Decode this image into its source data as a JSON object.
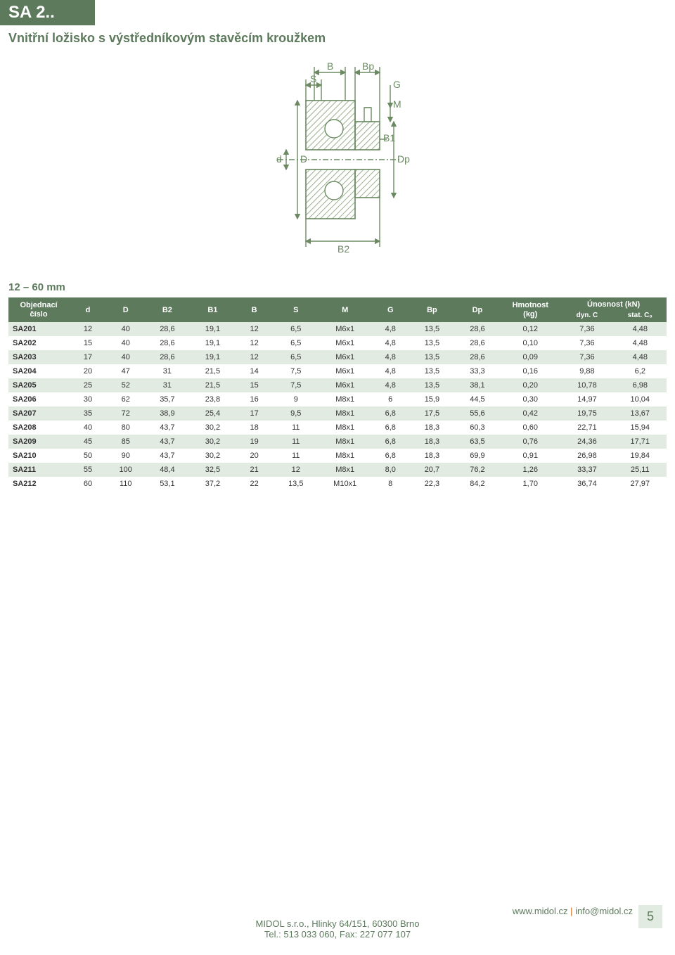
{
  "header": {
    "code": "SA 2.."
  },
  "subtitle": "Vnitřní ložisko s výstředníkovým stavěcím kroužkem",
  "diagram": {
    "labels": {
      "B": "B",
      "S": "S",
      "Bp": "Bp",
      "G": "G",
      "M": "M",
      "B1": "B1",
      "Dp": "Dp",
      "d": "d",
      "D": "D",
      "B2": "B2"
    },
    "stroke": "#6b8a62",
    "hatch": "#9bb08f"
  },
  "range": "12 – 60 mm",
  "table": {
    "header_bg": "#5d7a5d",
    "row_alt_bg": "#e2ebe2",
    "columns": [
      "Objednací číslo",
      "d",
      "D",
      "B2",
      "B1",
      "B",
      "S",
      "M",
      "G",
      "Bp",
      "Dp",
      "Hmotnost (kg)",
      "dyn. C",
      "stat. C₀"
    ],
    "group_load": "Únosnost (kN)",
    "col_hmot": "Hmotnost\n(kg)",
    "col_obj": "Objednací\nčíslo",
    "rows": [
      [
        "SA201",
        "12",
        "40",
        "28,6",
        "19,1",
        "12",
        "6,5",
        "M6x1",
        "4,8",
        "13,5",
        "28,6",
        "0,12",
        "7,36",
        "4,48"
      ],
      [
        "SA202",
        "15",
        "40",
        "28,6",
        "19,1",
        "12",
        "6,5",
        "M6x1",
        "4,8",
        "13,5",
        "28,6",
        "0,10",
        "7,36",
        "4,48"
      ],
      [
        "SA203",
        "17",
        "40",
        "28,6",
        "19,1",
        "12",
        "6,5",
        "M6x1",
        "4,8",
        "13,5",
        "28,6",
        "0,09",
        "7,36",
        "4,48"
      ],
      [
        "SA204",
        "20",
        "47",
        "31",
        "21,5",
        "14",
        "7,5",
        "M6x1",
        "4,8",
        "13,5",
        "33,3",
        "0,16",
        "9,88",
        "6,2"
      ],
      [
        "SA205",
        "25",
        "52",
        "31",
        "21,5",
        "15",
        "7,5",
        "M6x1",
        "4,8",
        "13,5",
        "38,1",
        "0,20",
        "10,78",
        "6,98"
      ],
      [
        "SA206",
        "30",
        "62",
        "35,7",
        "23,8",
        "16",
        "9",
        "M8x1",
        "6",
        "15,9",
        "44,5",
        "0,30",
        "14,97",
        "10,04"
      ],
      [
        "SA207",
        "35",
        "72",
        "38,9",
        "25,4",
        "17",
        "9,5",
        "M8x1",
        "6,8",
        "17,5",
        "55,6",
        "0,42",
        "19,75",
        "13,67"
      ],
      [
        "SA208",
        "40",
        "80",
        "43,7",
        "30,2",
        "18",
        "11",
        "M8x1",
        "6,8",
        "18,3",
        "60,3",
        "0,60",
        "22,71",
        "15,94"
      ],
      [
        "SA209",
        "45",
        "85",
        "43,7",
        "30,2",
        "19",
        "11",
        "M8x1",
        "6,8",
        "18,3",
        "63,5",
        "0,76",
        "24,36",
        "17,71"
      ],
      [
        "SA210",
        "50",
        "90",
        "43,7",
        "30,2",
        "20",
        "11",
        "M8x1",
        "6,8",
        "18,3",
        "69,9",
        "0,91",
        "26,98",
        "19,84"
      ],
      [
        "SA211",
        "55",
        "100",
        "48,4",
        "32,5",
        "21",
        "12",
        "M8x1",
        "8,0",
        "20,7",
        "76,2",
        "1,26",
        "33,37",
        "25,11"
      ],
      [
        "SA212",
        "60",
        "110",
        "53,1",
        "37,2",
        "22",
        "13,5",
        "M10x1",
        "8",
        "22,3",
        "84,2",
        "1,70",
        "36,74",
        "27,97"
      ]
    ]
  },
  "footer": {
    "url": "www.midol.cz",
    "email": "info@midol.cz",
    "line1": "MIDOL s.r.o., Hlinky 64/151, 60300 Brno",
    "line2": "Tel.: 513 033 060, Fax: 227 077 107",
    "page": "5"
  }
}
